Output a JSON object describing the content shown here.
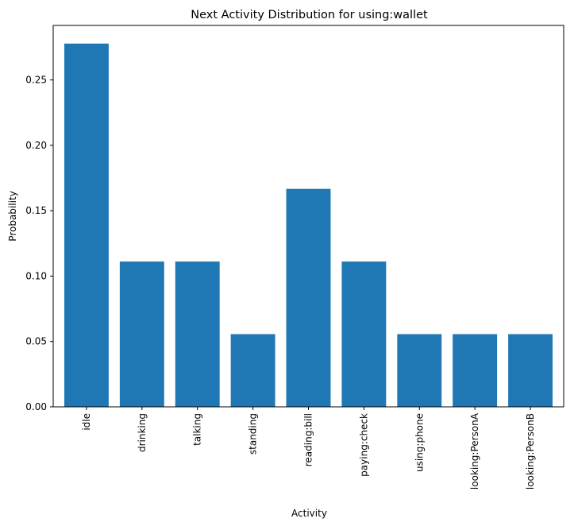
{
  "chart_data": {
    "type": "bar",
    "title": "Next Activity Distribution for using:wallet",
    "xlabel": "Activity",
    "ylabel": "Probability",
    "categories": [
      "idle",
      "drinking",
      "talking",
      "standing",
      "reading:bill",
      "paying:check",
      "using:phone",
      "looking:PersonA",
      "looking:PersonB"
    ],
    "values": [
      0.2778,
      0.1111,
      0.1111,
      0.0556,
      0.1667,
      0.1111,
      0.0556,
      0.0556,
      0.0556
    ],
    "ylim": [
      0,
      0.2917
    ],
    "yticks": [
      0.0,
      0.05,
      0.1,
      0.15,
      0.2,
      0.25
    ],
    "ytick_labels": [
      "0.00",
      "0.05",
      "0.10",
      "0.15",
      "0.20",
      "0.25"
    ],
    "grid": false,
    "legend": "none",
    "bar_color": "#1f77b4"
  }
}
